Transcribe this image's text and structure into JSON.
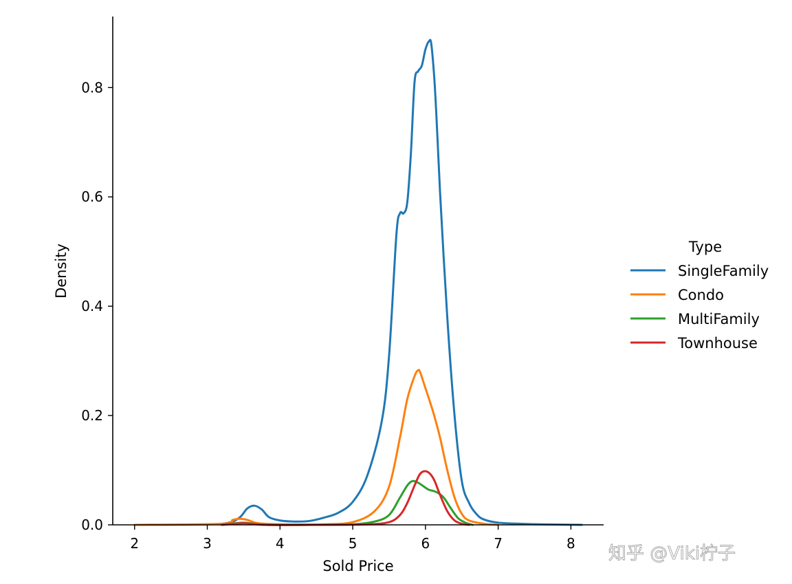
{
  "chart_data": {
    "type": "line",
    "title": "",
    "xlabel": "Sold Price",
    "ylabel": "Density",
    "xlim": [
      1.7,
      8.45
    ],
    "ylim": [
      0.0,
      0.93
    ],
    "xticks": [
      "2",
      "3",
      "4",
      "5",
      "6",
      "7",
      "8"
    ],
    "yticks": [
      "0.0",
      "0.2",
      "0.4",
      "0.6",
      "0.8"
    ],
    "grid": false,
    "legend": {
      "title": "Type",
      "placement": "right",
      "entries": [
        "SingleFamily",
        "Condo",
        "MultiFamily",
        "Townhouse"
      ]
    },
    "series": [
      {
        "name": "SingleFamily",
        "color": "#1f77b4",
        "x": [
          2.0,
          3.0,
          3.3,
          3.45,
          3.55,
          3.65,
          3.75,
          3.85,
          4.0,
          4.2,
          4.4,
          4.6,
          4.8,
          5.0,
          5.2,
          5.4,
          5.5,
          5.6,
          5.65,
          5.7,
          5.75,
          5.8,
          5.85,
          5.9,
          5.95,
          6.0,
          6.05,
          6.08,
          6.12,
          6.15,
          6.2,
          6.3,
          6.4,
          6.5,
          6.6,
          6.7,
          6.8,
          7.0,
          7.3,
          7.6,
          8.15
        ],
        "y": [
          0.0,
          0.001,
          0.004,
          0.014,
          0.03,
          0.035,
          0.028,
          0.014,
          0.008,
          0.006,
          0.007,
          0.013,
          0.022,
          0.042,
          0.09,
          0.19,
          0.31,
          0.53,
          0.57,
          0.57,
          0.59,
          0.68,
          0.81,
          0.83,
          0.84,
          0.87,
          0.885,
          0.88,
          0.82,
          0.75,
          0.61,
          0.38,
          0.2,
          0.08,
          0.04,
          0.02,
          0.01,
          0.004,
          0.002,
          0.001,
          0.0
        ],
        "peak": 0.885
      },
      {
        "name": "Condo",
        "color": "#ff7f0e",
        "x": [
          2.0,
          3.2,
          3.35,
          3.45,
          3.55,
          3.7,
          4.0,
          4.6,
          5.0,
          5.3,
          5.5,
          5.65,
          5.75,
          5.85,
          5.9,
          5.93,
          6.0,
          6.05,
          6.12,
          6.2,
          6.3,
          6.4,
          6.5,
          6.6,
          6.8,
          7.0
        ],
        "y": [
          0.0,
          0.002,
          0.009,
          0.011,
          0.009,
          0.003,
          0.001,
          0.001,
          0.005,
          0.025,
          0.07,
          0.16,
          0.23,
          0.272,
          0.283,
          0.278,
          0.25,
          0.23,
          0.2,
          0.16,
          0.1,
          0.05,
          0.02,
          0.008,
          0.002,
          0.0
        ],
        "peak": 0.283
      },
      {
        "name": "MultiFamily",
        "color": "#2ca02c",
        "x": [
          3.2,
          3.5,
          3.8,
          4.5,
          5.0,
          5.3,
          5.5,
          5.65,
          5.75,
          5.82,
          5.9,
          6.0,
          6.05,
          6.15,
          6.25,
          6.35,
          6.45,
          6.55,
          6.65
        ],
        "y": [
          0.0,
          0.004,
          0.0,
          0.0,
          0.001,
          0.006,
          0.018,
          0.05,
          0.072,
          0.08,
          0.077,
          0.068,
          0.064,
          0.06,
          0.05,
          0.03,
          0.012,
          0.004,
          0.0
        ],
        "peak": 0.08
      },
      {
        "name": "Townhouse",
        "color": "#d62728",
        "x": [
          3.2,
          3.5,
          3.8,
          4.5,
          5.2,
          5.5,
          5.65,
          5.75,
          5.85,
          5.92,
          5.98,
          6.05,
          6.12,
          6.2,
          6.3,
          6.4,
          6.5,
          6.6
        ],
        "y": [
          0.0,
          0.003,
          0.0,
          0.0,
          0.001,
          0.005,
          0.018,
          0.04,
          0.072,
          0.092,
          0.098,
          0.095,
          0.082,
          0.055,
          0.025,
          0.008,
          0.002,
          0.0
        ],
        "peak": 0.098
      }
    ]
  },
  "watermark": "知乎 @Viki柠子"
}
